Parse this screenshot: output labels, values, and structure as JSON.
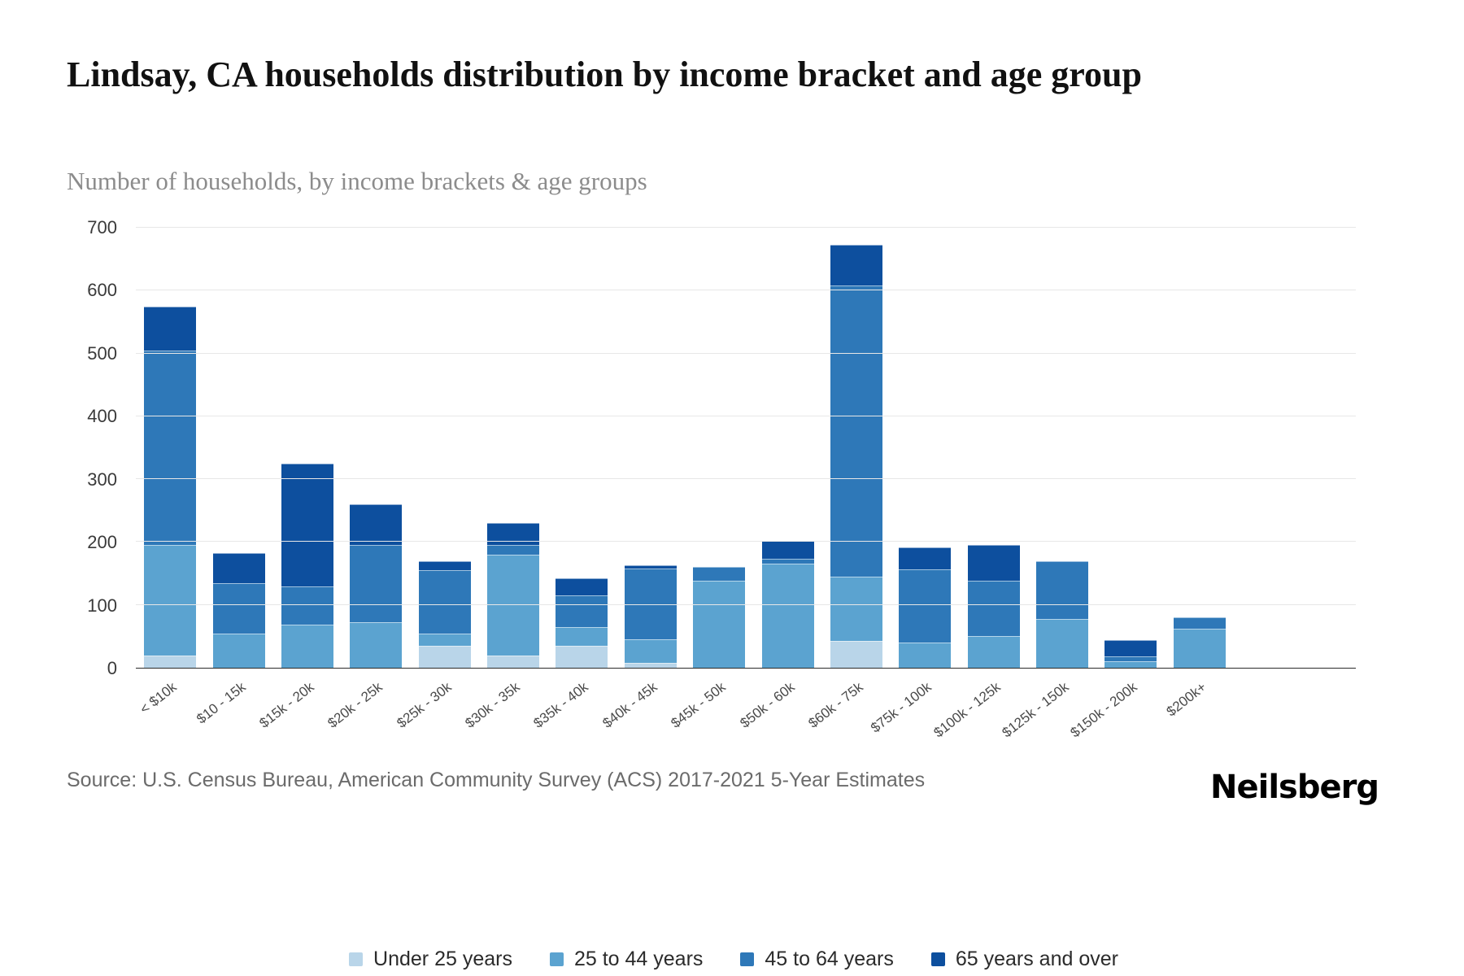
{
  "header": {
    "title": "Lindsay, CA households distribution by income bracket and age group",
    "subtitle": "Number of households, by income brackets & age groups"
  },
  "footer": {
    "source": "Source: U.S. Census Bureau, American Community Survey (ACS) 2017-2021 5-Year Estimates",
    "brand": "Neilsberg"
  },
  "chart_data": {
    "type": "bar",
    "stacked": true,
    "title": "Lindsay, CA households distribution by income bracket and age group",
    "subtitle": "Number of households, by income brackets & age groups",
    "grid": true,
    "legend_position": "bottom",
    "ylim": [
      0,
      700
    ],
    "yticks": [
      0,
      100,
      200,
      300,
      400,
      500,
      600,
      700
    ],
    "categories": [
      "< $10k",
      "$10 - 15k",
      "$15k - 20k",
      "$20k - 25k",
      "$25k - 30k",
      "$30k - 35k",
      "$35k - 40k",
      "$40k - 45k",
      "$45k - 50k",
      "$50k - 60k",
      "$60k - 75k",
      "$75k - 100k",
      "$100k - 125k",
      "$125k - 150k",
      "$150k - 200k",
      "$200k+"
    ],
    "series": [
      {
        "name": "Under 25 years",
        "color": "#b9d5e9",
        "values": [
          20,
          0,
          0,
          0,
          35,
          20,
          35,
          8,
          0,
          0,
          43,
          0,
          0,
          0,
          0,
          0
        ]
      },
      {
        "name": "25 to 44 years",
        "color": "#5ba3d0",
        "values": [
          175,
          55,
          68,
          73,
          20,
          160,
          30,
          37,
          138,
          165,
          102,
          40,
          50,
          78,
          10,
          62
        ]
      },
      {
        "name": "45 to 64 years",
        "color": "#2e78b8",
        "values": [
          310,
          80,
          62,
          122,
          100,
          15,
          50,
          113,
          22,
          8,
          463,
          117,
          88,
          92,
          8,
          18
        ]
      },
      {
        "name": "65 years and over",
        "color": "#0d4f9e",
        "values": [
          70,
          48,
          195,
          65,
          15,
          35,
          28,
          5,
          0,
          29,
          65,
          35,
          57,
          0,
          26,
          0
        ]
      }
    ]
  }
}
